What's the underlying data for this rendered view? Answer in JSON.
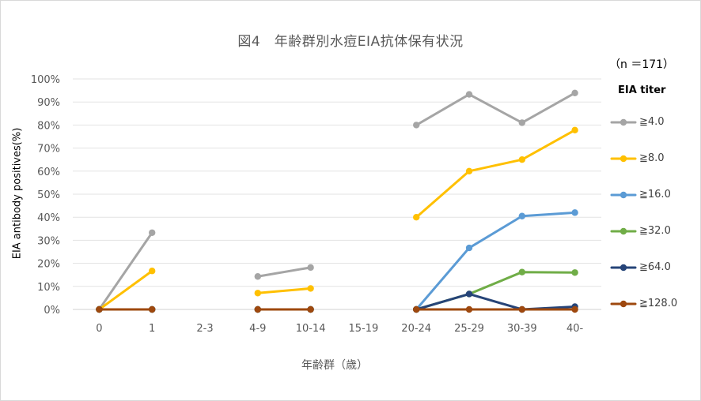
{
  "chart_data": {
    "type": "line",
    "title": "図4　年齢群別水痘EIA抗体保有状況",
    "sample_size": "（n ＝171）",
    "xlabel": "年齢群（歳）",
    "ylabel": "EIA antibody positives(%)",
    "categories": [
      "0",
      "1",
      "2-3",
      "4-9",
      "10-14",
      "15-19",
      "20-24",
      "25-29",
      "30-39",
      "40-"
    ],
    "ylim": [
      0,
      100
    ],
    "yticks": [
      "0%",
      "10%",
      "20%",
      "30%",
      "40%",
      "50%",
      "60%",
      "70%",
      "80%",
      "90%",
      "100%"
    ],
    "grid": true,
    "legend_title": "EIA titer",
    "legend_position": "right",
    "series": [
      {
        "name": "≧4.0",
        "color": "#a5a5a5",
        "values": [
          0,
          33.3,
          null,
          14.3,
          18.2,
          null,
          80,
          93.3,
          81,
          93.9
        ]
      },
      {
        "name": "≧8.0",
        "color": "#ffc000",
        "values": [
          0,
          16.7,
          null,
          7.1,
          9.1,
          null,
          40,
          60,
          65,
          77.8
        ]
      },
      {
        "name": "≧16.0",
        "color": "#5b9bd5",
        "values": [
          0,
          0,
          null,
          0,
          0,
          null,
          0,
          26.7,
          40.5,
          42
        ]
      },
      {
        "name": "≧32.0",
        "color": "#70ad47",
        "values": [
          0,
          0,
          null,
          0,
          0,
          null,
          0,
          6.7,
          16.2,
          16
        ]
      },
      {
        "name": "≧64.0",
        "color": "#264478",
        "values": [
          0,
          0,
          null,
          0,
          0,
          null,
          0,
          6.7,
          0,
          1.2
        ]
      },
      {
        "name": "≧128.0",
        "color": "#9e480e",
        "values": [
          0,
          0,
          null,
          0,
          0,
          null,
          0,
          0,
          0,
          0
        ]
      }
    ]
  }
}
